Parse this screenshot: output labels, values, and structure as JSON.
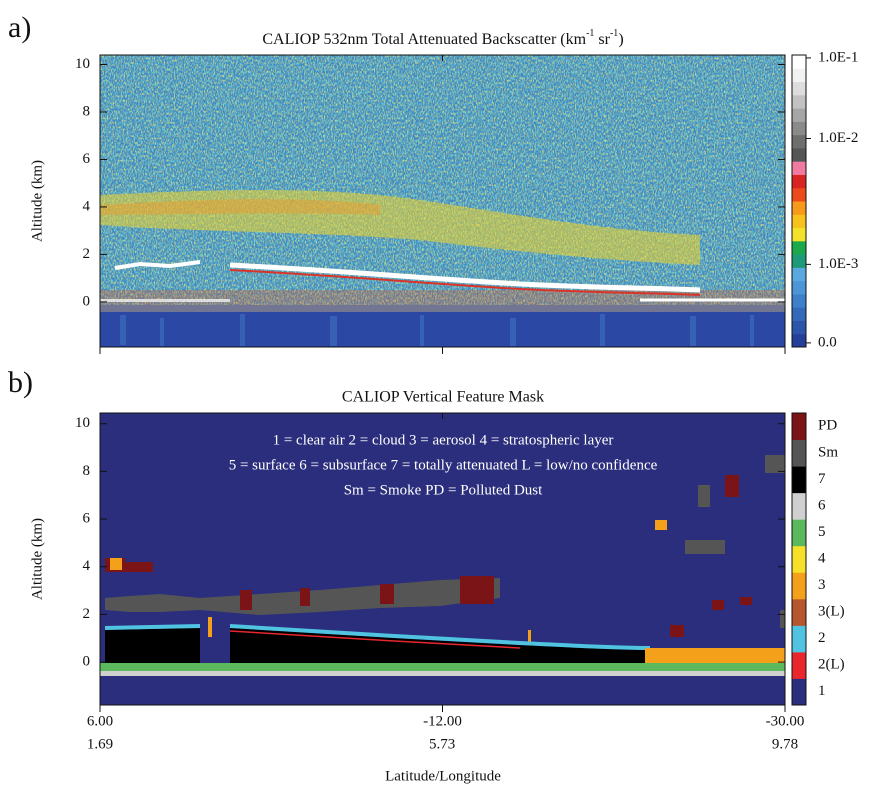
{
  "chart_data": [
    {
      "type": "backscatter",
      "panel_label": "a)",
      "title": [
        "CALIOP 532nm Total Attenuated Backscatter (km",
        "-1",
        " sr",
        "-1",
        ")"
      ],
      "ylabel": "Altitude (km)",
      "ylim": [
        -1.9,
        10.4
      ],
      "yticks": [
        0,
        2,
        4,
        6,
        8,
        10
      ],
      "colorbar": {
        "colors": [
          "#243f9a",
          "#2c55aa",
          "#3468b8",
          "#3d7fc8",
          "#4c95d6",
          "#5aa8e0",
          "#1f9a78",
          "#1aa84a",
          "#f2e32a",
          "#f7c21e",
          "#f79a1a",
          "#ec4a1c",
          "#d92424",
          "#f07aa0",
          "#555555",
          "#6e6e6e",
          "#8a8a8a",
          "#a6a6a6",
          "#c2c2c2",
          "#dddddd",
          "#f2f2f2",
          "#ffffff"
        ],
        "ticks": [
          {
            "value": 0.1,
            "label": "1.0E-1"
          },
          {
            "value": 0.01,
            "label": "1.0E-2"
          },
          {
            "value": 0.001,
            "label": "1.0E-3"
          },
          {
            "value": 0,
            "label": "0.0"
          }
        ]
      }
    },
    {
      "type": "mask",
      "panel_label": "b)",
      "title": "CALIOP Vertical Feature Mask",
      "ylabel": "Altitude (km)",
      "ylim": [
        -1.8,
        10.45
      ],
      "yticks": [
        0,
        2,
        4,
        6,
        8,
        10
      ],
      "annotations": [
        "1 = clear air  2 = cloud  3 = aerosol  4 = stratospheric layer",
        "5 = surface  6 = subsurface  7 = totally attenuated  L = low/no confidence",
        "Sm = Smoke  PD = Polluted Dust"
      ],
      "legend": {
        "categories": [
          "1",
          "2(L)",
          "2",
          "3(L)",
          "3",
          "4",
          "5",
          "6",
          "7",
          "Sm",
          "PD"
        ],
        "colors": [
          "#2a2e7c",
          "#e8262b",
          "#4fc3e0",
          "#b5562e",
          "#f5a01a",
          "#f7e02a",
          "#5cb85c",
          "#d0d0d0",
          "#000000",
          "#555555",
          "#7a1416"
        ]
      },
      "xlabel": "Latitude/Longitude",
      "xlim": [
        6,
        -30
      ],
      "xticks": [
        {
          "value": 6,
          "label": "6.00"
        },
        {
          "value": -12,
          "label": "-12.00"
        },
        {
          "value": -30,
          "label": "-30.00"
        }
      ],
      "x2lim": [
        1.69,
        9.78
      ],
      "x2ticks": [
        1.69,
        5.73,
        9.78
      ]
    }
  ]
}
